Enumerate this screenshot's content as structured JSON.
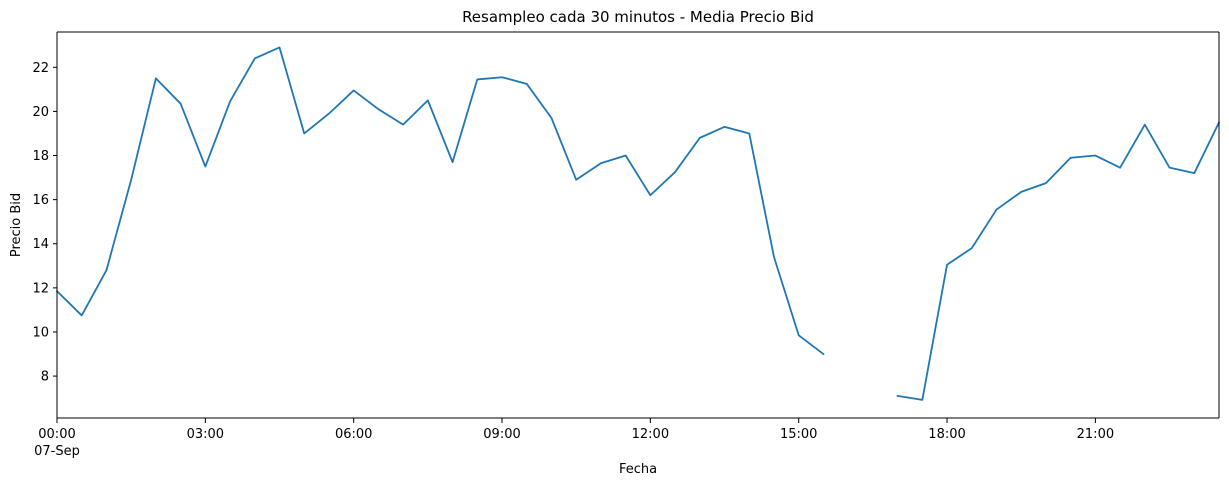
{
  "chart_data": {
    "type": "line",
    "title": "Resampleo cada 30 minutos - Media Precio Bid",
    "xlabel": "Fecha",
    "ylabel": "Precio Bid",
    "x_tick_labels": [
      "00:00",
      "03:00",
      "06:00",
      "09:00",
      "12:00",
      "15:00",
      "18:00",
      "21:00"
    ],
    "x_tick_sublabel": "07-Sep",
    "x_range_hours": [
      0,
      23.5
    ],
    "ylim": [
      6.1,
      23.6
    ],
    "y_ticks": [
      8,
      10,
      12,
      14,
      16,
      18,
      20,
      22
    ],
    "grid": false,
    "series": [
      {
        "color": "#1f77b4",
        "x_hours": [
          0,
          0.5,
          1,
          1.5,
          2,
          2.5,
          3,
          3.5,
          4,
          4.5,
          5,
          5.5,
          6,
          6.5,
          7,
          7.5,
          8,
          8.5,
          9,
          9.5,
          10,
          10.5,
          11,
          11.5,
          12,
          12.5,
          13,
          13.5,
          14,
          14.5,
          15,
          15.5,
          16,
          16.5,
          17,
          17.5,
          18,
          18.5,
          19,
          19.5,
          20,
          20.5,
          21,
          21.5,
          22,
          22.5,
          23,
          23.5
        ],
        "values": [
          11.85,
          10.75,
          12.8,
          16.9,
          21.5,
          20.35,
          17.5,
          20.45,
          22.4,
          22.9,
          19.0,
          19.9,
          20.95,
          20.1,
          19.4,
          20.5,
          17.7,
          21.45,
          21.55,
          21.25,
          19.7,
          16.9,
          17.65,
          18.0,
          16.2,
          17.25,
          18.8,
          19.3,
          19.0,
          13.4,
          9.85,
          9.0,
          null,
          null,
          7.1,
          6.92,
          13.05,
          13.8,
          15.55,
          16.35,
          16.75,
          17.9,
          18.0,
          17.45,
          19.4,
          17.45,
          17.2,
          19.5
        ]
      }
    ]
  }
}
